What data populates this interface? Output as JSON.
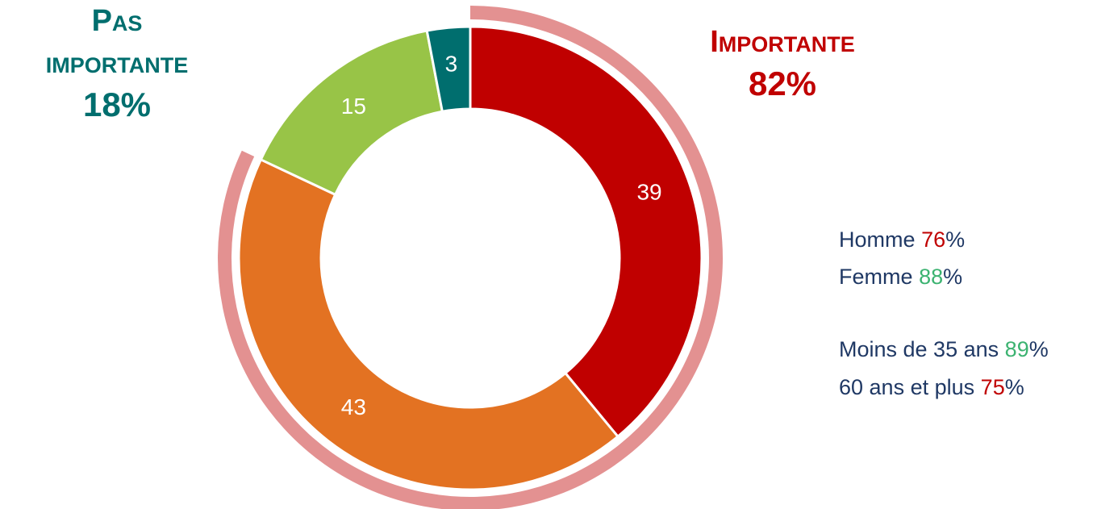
{
  "chart_data": {
    "type": "donut",
    "values": [
      39,
      43,
      15,
      3
    ],
    "colors": [
      "#c00000",
      "#e37222",
      "#98c447",
      "#006e6e"
    ],
    "groups": {
      "names": [
        "Pas importante",
        "Importante"
      ],
      "values": [
        18,
        82
      ],
      "value_labels": [
        "18%",
        "82%"
      ],
      "colors": [
        "#006e6e",
        "#c00000"
      ],
      "ring_color": "#e39191"
    },
    "breakdown": [
      {
        "label": "Homme",
        "value": 76,
        "unit": "%",
        "color": "#c00000"
      },
      {
        "label": "Femme",
        "value": 88,
        "unit": "%",
        "color": "#3cb371"
      },
      {
        "label": "Moins de 35 ans",
        "value": 89,
        "unit": "%",
        "color": "#3cb371"
      },
      {
        "label": "60 ans et plus",
        "value": 75,
        "unit": "%",
        "color": "#c00000"
      }
    ]
  }
}
